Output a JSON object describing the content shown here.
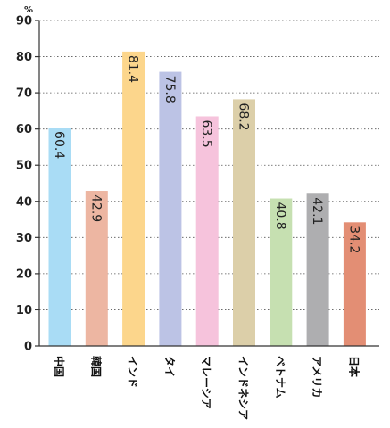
{
  "chart_data": {
    "type": "bar",
    "unit": "%",
    "categories": [
      "中国",
      "韓国",
      "インド",
      "タイ",
      "マレーシア",
      "インドネシア",
      "ベトナム",
      "アメリカ",
      "日本"
    ],
    "values": [
      60.4,
      42.9,
      81.4,
      75.8,
      63.5,
      68.2,
      40.8,
      42.1,
      34.2
    ],
    "value_labels": [
      "60.4",
      "42.9",
      "81.4",
      "75.8",
      "63.5",
      "68.2",
      "40.8",
      "42.1",
      "34.2"
    ],
    "colors": [
      "#a9dcf5",
      "#edb6a2",
      "#fcd68c",
      "#bcc3e5",
      "#f6c3dc",
      "#dccfa9",
      "#c6e0b1",
      "#aeaeb0",
      "#e38e74"
    ],
    "ylim": [
      0,
      90
    ],
    "yticks": [
      "0",
      "10",
      "20",
      "30",
      "40",
      "50",
      "60",
      "70",
      "80",
      "90"
    ],
    "grid": true
  }
}
